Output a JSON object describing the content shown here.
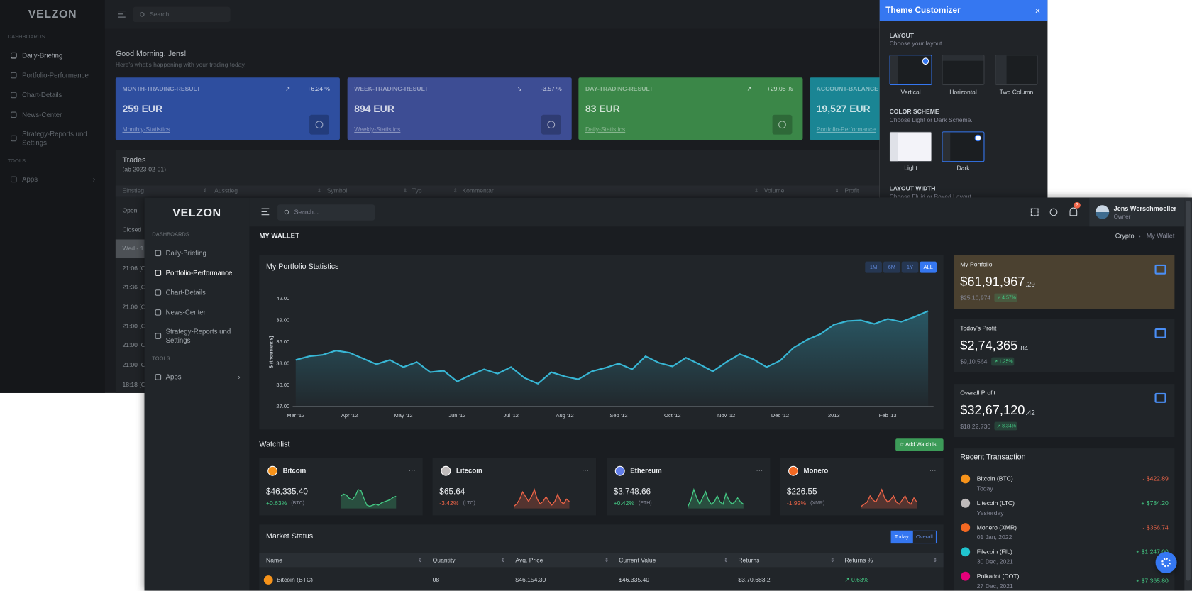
{
  "back": {
    "brand": "velzon",
    "search_placeholder": "Search...",
    "menu_sections": [
      "DASHBOARDS",
      "TOOLS"
    ],
    "menu": [
      "Daily-Briefing",
      "Portfolio-Performance",
      "Chart-Details",
      "News-Center",
      "Strategy-Reports und Settings",
      "Apps"
    ],
    "greeting": "Good Morning, Jens!",
    "greeting_sub": "Here's what's happening with your trading today.",
    "cards": [
      {
        "title": "MONTH-TRADING-RESULT",
        "change": "+6.24 %",
        "value": "259 EUR",
        "link": "Monthly-Statistics"
      },
      {
        "title": "WEEK-TRADING-RESULT",
        "change": "-3.57 %",
        "value": "894 EUR",
        "link": "Weekly-Statistics"
      },
      {
        "title": "DAY-TRADING-RESULT",
        "change": "+29.08 %",
        "value": "83 EUR",
        "link": "Daily-Statistics"
      },
      {
        "title": "ACCOUNT-BALANCE",
        "change": "",
        "value": "19,527 EUR",
        "link": "Portfolio-Performance"
      }
    ],
    "trades": {
      "title": "Trades",
      "subtitle": "(ab 2023-02-01)",
      "columns": [
        "Einstieg",
        "Ausstieg",
        "Symbol",
        "Typ",
        "Kommentar",
        "Volume",
        "Profit"
      ],
      "rows": [
        "Open",
        "Closed",
        "Wed - 1",
        "21:06 [C",
        "21:36 [C",
        "21:00 [C",
        "21:00 [C",
        "21:00 [C",
        "21:00 [C",
        "18:18 [C"
      ]
    }
  },
  "customizer": {
    "title": "Theme Customizer",
    "layout_title": "LAYOUT",
    "layout_sub": "Choose your layout",
    "layouts": [
      "Vertical",
      "Horizontal",
      "Two Column"
    ],
    "scheme_title": "COLOR SCHEME",
    "scheme_sub": "Choose Light or Dark Scheme.",
    "schemes": [
      "Light",
      "Dark"
    ],
    "width_title": "LAYOUT WIDTH",
    "width_sub": "Choose Fluid or Boxed Layout"
  },
  "front": {
    "brand": "velzon",
    "search_placeholder": "Search...",
    "notification_count": "3",
    "user_name": "Jens Werschmoeller",
    "user_role": "Owner",
    "menu_sections": [
      "DASHBOARDS",
      "TOOLS"
    ],
    "menu": [
      "Daily-Briefing",
      "Portfolio-Performance",
      "Chart-Details",
      "News-Center",
      "Strategy-Reports und Settings",
      "Apps"
    ],
    "page_title": "MY WALLET",
    "breadcrumb": [
      "Crypto",
      "My Wallet"
    ],
    "range_buttons": [
      "1M",
      "6M",
      "1Y",
      "ALL"
    ],
    "watchlist": {
      "title": "Watchlist",
      "add_button": "Add Watchlist",
      "items": [
        {
          "name": "Bitcoin",
          "price": "$46,335.40",
          "change": "+0.63%",
          "ticker": "(BTC)",
          "trend": [
            0.6,
            0.7,
            0.65,
            0.5,
            0.45,
            0.6,
            0.9,
            0.85,
            0.5,
            0.2,
            0.15,
            0.2,
            0.25,
            0.2,
            0.3,
            0.35,
            0.4,
            0.45,
            0.55,
            0.6
          ]
        },
        {
          "name": "Litecoin",
          "price": "$65.64",
          "change": "-3.42%",
          "ticker": "(LTC)",
          "trend": [
            0.1,
            0.2,
            0.4,
            0.7,
            0.5,
            0.3,
            0.5,
            0.8,
            0.4,
            0.2,
            0.3,
            0.5,
            0.3,
            0.15,
            0.3,
            0.6,
            0.3,
            0.2,
            0.4,
            0.3
          ]
        },
        {
          "name": "Ethereum",
          "price": "$3,748.66",
          "change": "+0.42%",
          "ticker": "(ETH)",
          "trend": [
            0.1,
            0.4,
            0.9,
            0.5,
            0.2,
            0.5,
            0.8,
            0.4,
            0.2,
            0.3,
            0.6,
            0.3,
            0.2,
            0.7,
            0.4,
            0.2,
            0.3,
            0.5,
            0.3,
            0.2
          ]
        },
        {
          "name": "Monero",
          "price": "$226.55",
          "change": "-1.92%",
          "ticker": "(XMR)",
          "trend": [
            0.1,
            0.2,
            0.3,
            0.6,
            0.4,
            0.3,
            0.6,
            0.9,
            0.5,
            0.3,
            0.4,
            0.6,
            0.3,
            0.2,
            0.4,
            0.6,
            0.3,
            0.2,
            0.5,
            0.3
          ]
        }
      ]
    },
    "market": {
      "title": "Market Status",
      "tabs": [
        "Today",
        "Overall"
      ],
      "columns": [
        "Name",
        "Quantity",
        "Avg. Price",
        "Current Value",
        "Returns",
        "Returns %"
      ],
      "rows": [
        [
          "Bitcoin (BTC)",
          "08",
          "$46,154.30",
          "$46,335.40",
          "$3,70,683.2",
          "0.63%"
        ]
      ]
    },
    "stats": [
      {
        "title": "My Portfolio",
        "value": "$61,91,967",
        "cents": ".29",
        "sub": "$25,10,974",
        "badge": "4.57%"
      },
      {
        "title": "Today's Profit",
        "value": "$2,74,365",
        "cents": ".84",
        "sub": "$9,10,564",
        "badge": "1.25%"
      },
      {
        "title": "Overall Profit",
        "value": "$32,67,120",
        "cents": ".42",
        "sub": "$18,22,730",
        "badge": "8.34%"
      }
    ],
    "recent": {
      "title": "Recent Transaction",
      "rows": [
        {
          "name": "Bitcoin (BTC)",
          "date": "Today",
          "amount": "- $422.89"
        },
        {
          "name": "Litecoin (LTC)",
          "date": "Yesterday",
          "amount": "+ $784.20"
        },
        {
          "name": "Monero (XMR)",
          "date": "01 Jan, 2022",
          "amount": "- $356.74"
        },
        {
          "name": "Filecoin (FIL)",
          "date": "30 Dec, 2021",
          "amount": "+ $1,247.00"
        },
        {
          "name": "Polkadot (DOT)",
          "date": "27 Dec, 2021",
          "amount": "+ $7,365.80"
        }
      ]
    }
  },
  "chart_data": {
    "type": "line",
    "title": "My Portfolio Statistics",
    "y_label": "$ (thousands)",
    "color": "#38b6d4",
    "categories": [
      "Mar '12",
      null,
      null,
      null,
      "Apr '12",
      null,
      null,
      null,
      "May '12",
      null,
      null,
      null,
      "Jun '12",
      null,
      null,
      null,
      "Jul '12",
      null,
      null,
      null,
      "Aug '12",
      null,
      null,
      null,
      "Sep '12",
      null,
      null,
      null,
      "Oct '12",
      null,
      null,
      null,
      "Nov '12",
      null,
      null,
      null,
      "Dec '12",
      null,
      null,
      null,
      "2013",
      null,
      null,
      null,
      "Feb '13",
      null,
      null,
      null
    ],
    "values": [
      33.5,
      34.0,
      34.2,
      34.8,
      34.5,
      33.7,
      32.9,
      33.5,
      32.5,
      33.2,
      31.8,
      32.0,
      30.5,
      31.4,
      32.2,
      31.6,
      32.5,
      31.0,
      30.2,
      31.8,
      31.2,
      30.8,
      31.9,
      32.4,
      33.0,
      32.2,
      34.0,
      33.1,
      32.6,
      33.8,
      32.9,
      31.9,
      33.2,
      34.3,
      33.6,
      32.5,
      33.4,
      35.2,
      36.3,
      37.1,
      38.4,
      38.9,
      39.0,
      38.5,
      39.2,
      38.8,
      39.5,
      40.3
    ],
    "ylim": [
      27,
      42
    ],
    "yticks": [
      {
        "value": 27,
        "label": "27.00"
      },
      {
        "value": 30,
        "label": "30.00"
      },
      {
        "value": 33,
        "label": "33.00"
      },
      {
        "value": 36,
        "label": "36.00"
      },
      {
        "value": 39,
        "label": "39.00"
      },
      {
        "value": 42,
        "label": "42.00"
      }
    ],
    "grid": false
  }
}
